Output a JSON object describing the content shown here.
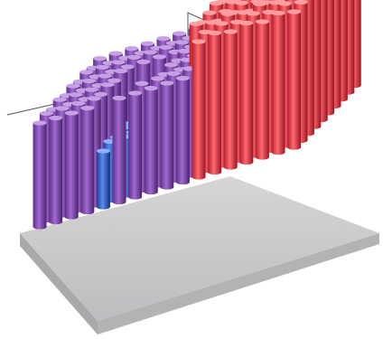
{
  "scene": {
    "subject": "3d-pillar-array-on-tray",
    "background_color": "#ffffff",
    "tray_color": "#c9c9cb",
    "waveform": {
      "color": "#55555a",
      "levels": [
        "low",
        "mid",
        "high",
        "highest"
      ]
    },
    "regions": [
      {
        "name": "purple",
        "color": "#8a4fb8"
      },
      {
        "name": "blue",
        "color": "#2f5fc8"
      },
      {
        "name": "red",
        "color": "#e8323e"
      }
    ]
  }
}
